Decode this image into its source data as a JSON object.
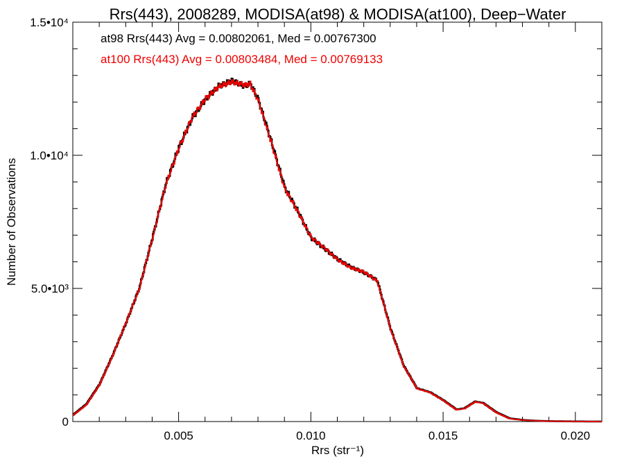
{
  "chart_data": {
    "type": "line",
    "title": "Rrs(443), 2008289, MODISA(at98) & MODISA(at100), Deep−Water",
    "xlabel": "Rrs (str⁻¹)",
    "ylabel": "Number of Observations",
    "xlim": [
      0.001,
      0.021
    ],
    "ylim": [
      0,
      15000
    ],
    "grid": false,
    "x_ticks": [
      {
        "value": 0.005,
        "label": "0.005"
      },
      {
        "value": 0.01,
        "label": "0.010"
      },
      {
        "value": 0.015,
        "label": "0.015"
      },
      {
        "value": 0.02,
        "label": "0.020"
      }
    ],
    "y_ticks": [
      {
        "value": 0,
        "label": "0"
      },
      {
        "value": 5000,
        "label": "5.0•10³"
      },
      {
        "value": 10000,
        "label": "1.0•10⁴"
      },
      {
        "value": 15000,
        "label": "1.5•10⁴"
      }
    ],
    "annotations": [
      {
        "text": "at98 Rrs(443) Avg = 0.00802061, Med = 0.00767300",
        "color": "#000000"
      },
      {
        "text": "at100 Rrs(443) Avg = 0.00803484, Med = 0.00769133",
        "color": "#ee0000"
      }
    ],
    "x": [
      0.001,
      0.0015,
      0.002,
      0.0025,
      0.003,
      0.0035,
      0.004,
      0.0045,
      0.005,
      0.0055,
      0.006,
      0.0065,
      0.007,
      0.0075,
      0.0077,
      0.008,
      0.0085,
      0.009,
      0.0095,
      0.01,
      0.0105,
      0.011,
      0.0115,
      0.012,
      0.0125,
      0.013,
      0.0135,
      0.014,
      0.0145,
      0.015,
      0.0155,
      0.0158,
      0.0162,
      0.0165,
      0.017,
      0.0175,
      0.018,
      0.0185,
      0.019,
      0.02,
      0.021
    ],
    "series": [
      {
        "name": "",
        "color": "#000000",
        "values": [
          250,
          650,
          1400,
          2500,
          3700,
          5000,
          6900,
          8900,
          10300,
          11400,
          12100,
          12600,
          12800,
          12600,
          12700,
          12100,
          10500,
          8800,
          7900,
          6900,
          6500,
          6100,
          5800,
          5600,
          5300,
          3500,
          2100,
          1250,
          1100,
          800,
          450,
          500,
          750,
          700,
          350,
          120,
          60,
          30,
          15,
          5,
          0
        ]
      },
      {
        "name": "",
        "color": "#ee0000",
        "values": [
          240,
          630,
          1380,
          2480,
          3720,
          4980,
          6880,
          8880,
          10280,
          11420,
          12120,
          12580,
          12760,
          12640,
          12680,
          12060,
          10460,
          8760,
          7880,
          6920,
          6520,
          6080,
          5780,
          5620,
          5280,
          3480,
          2080,
          1240,
          1090,
          790,
          440,
          490,
          740,
          690,
          340,
          110,
          55,
          28,
          14,
          4,
          0
        ]
      }
    ]
  }
}
